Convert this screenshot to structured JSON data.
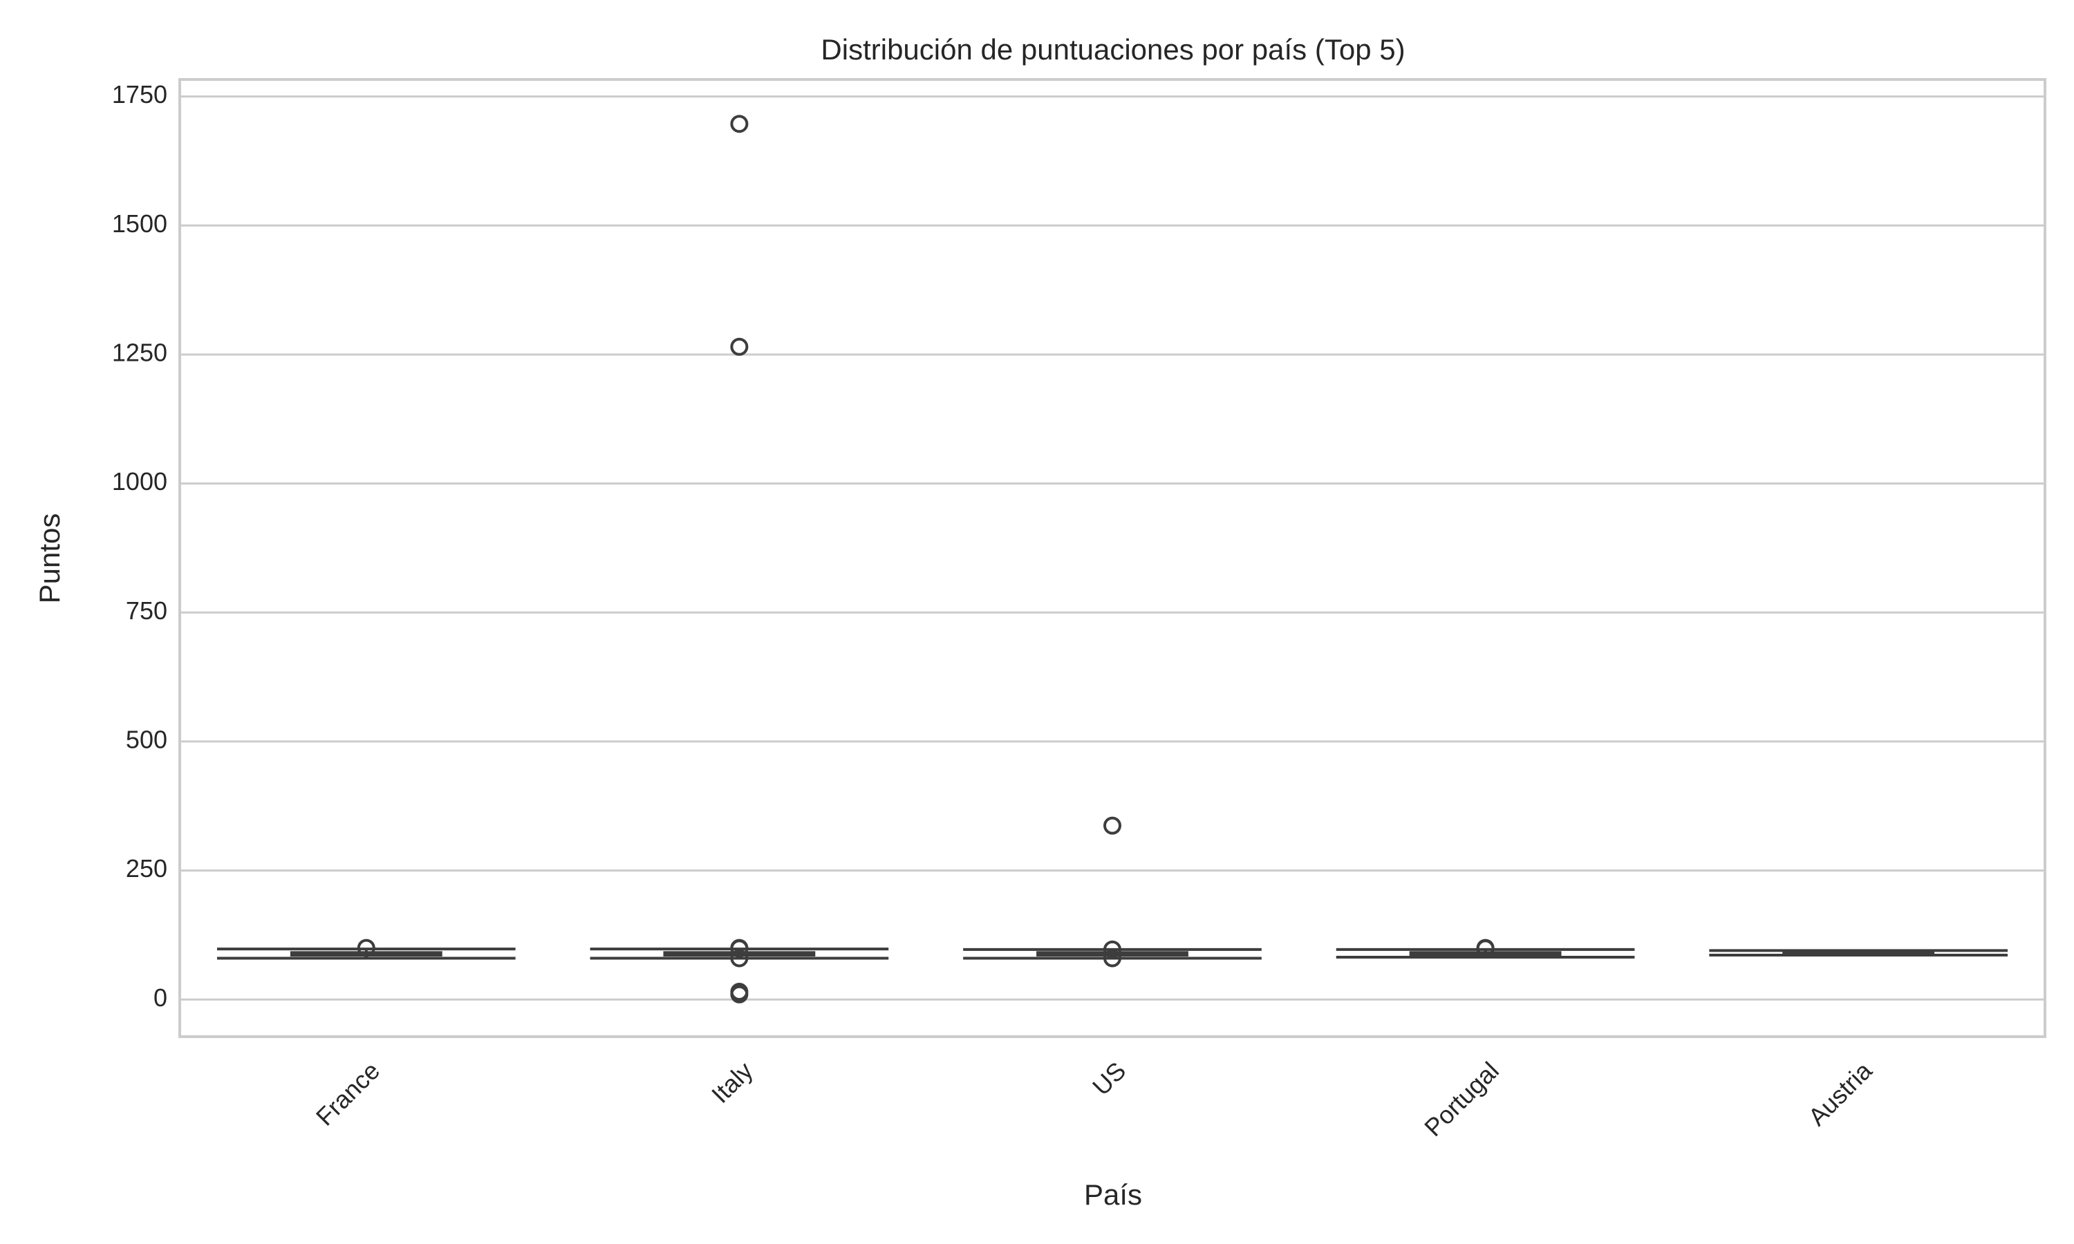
{
  "chart_data": {
    "type": "box",
    "title": "Distribución de puntuaciones por país (Top 5)",
    "x_label": "País",
    "y_label": "Puntos",
    "categories": [
      "France",
      "Italy",
      "US",
      "Portugal",
      "Austria"
    ],
    "boxes": [
      {
        "whislo": 80,
        "q1": 86,
        "median": 88,
        "q3": 91,
        "whishi": 98,
        "fliers": [
          100
        ]
      },
      {
        "whislo": 80,
        "q1": 86,
        "median": 88,
        "q3": 91,
        "whishi": 98,
        "fliers": [
          1697,
          1265,
          100,
          99,
          80,
          15,
          10
        ]
      },
      {
        "whislo": 80,
        "q1": 86,
        "median": 88,
        "q3": 91,
        "whishi": 97,
        "fliers": [
          337,
          97,
          80
        ]
      },
      {
        "whislo": 82,
        "q1": 86,
        "median": 88,
        "q3": 91,
        "whishi": 97,
        "fliers": [
          100,
          99
        ]
      },
      {
        "whislo": 86,
        "q1": 88,
        "median": 90,
        "q3": 92,
        "whishi": 95,
        "fliers": []
      }
    ],
    "color": "#3d3d3d",
    "line_color": "#3d3d3d",
    "ylim": [
      -72,
      1783
    ],
    "yticks": [
      0,
      250,
      500,
      750,
      1000,
      1250,
      1500,
      1750
    ],
    "grid": true
  }
}
